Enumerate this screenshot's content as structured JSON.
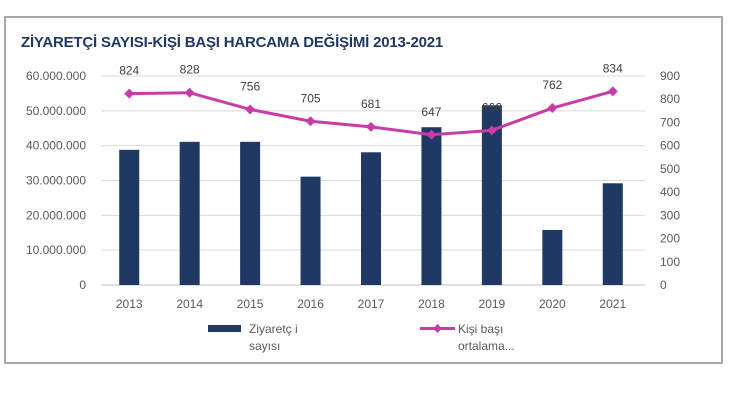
{
  "chart_data": {
    "type": "bar+line",
    "title": "ZİYARETÇİ SAYISI-KİŞİ BAŞI HARCAMA  DEĞİŞİMİ 2013-2021",
    "categories": [
      "2013",
      "2014",
      "2015",
      "2016",
      "2017",
      "2018",
      "2019",
      "2020",
      "2021"
    ],
    "series": [
      {
        "name": "Ziyaretç i sayısı",
        "legend_lines": [
          "Ziyaretç i",
          "sayısı"
        ],
        "type": "bar",
        "axis": "left",
        "color": "#1f3864",
        "values": [
          38800000,
          41100000,
          41100000,
          31100000,
          38100000,
          45300000,
          51600000,
          15800000,
          29200000
        ]
      },
      {
        "name": "Kişi başı ortalama...",
        "legend_lines": [
          "Kişi başı",
          "ortalama..."
        ],
        "type": "line",
        "axis": "right",
        "color": "#c83ca8",
        "values": [
          824,
          828,
          756,
          705,
          681,
          647,
          666,
          762,
          834
        ],
        "data_labels": [
          "824",
          "828",
          "756",
          "705",
          "681",
          "647",
          "666",
          "762",
          "834"
        ]
      }
    ],
    "left_axis": {
      "ylim": [
        0,
        60000000
      ],
      "ticks": [
        "0",
        "10.000.000",
        "20.000.000",
        "30.000.000",
        "40.000.000",
        "50.000.000",
        "60.000.000"
      ]
    },
    "right_axis": {
      "ylim": [
        0,
        900
      ],
      "ticks": [
        "0",
        "100",
        "200",
        "300",
        "400",
        "500",
        "600",
        "700",
        "800",
        "900"
      ]
    },
    "grid": true,
    "legend": "bottom"
  }
}
